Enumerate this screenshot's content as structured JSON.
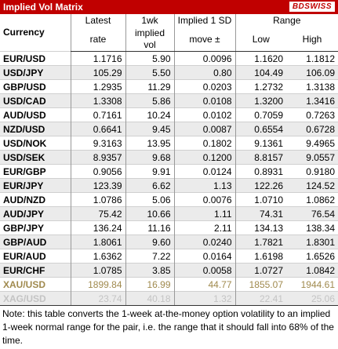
{
  "header": {
    "title": "Implied Vol Matrix",
    "logo": "BDSWISS"
  },
  "table": {
    "header": {
      "currency": "Currency",
      "latest": [
        "Latest",
        "rate"
      ],
      "vol": [
        "1wk",
        "implied vol"
      ],
      "move": [
        "Implied 1 SD",
        "move ±"
      ],
      "range": "Range",
      "low": "Low",
      "high": "High"
    },
    "rows": [
      [
        "EUR/USD",
        "1.1716",
        "5.90",
        "0.0096",
        "1.1620",
        "1.1812"
      ],
      [
        "USD/JPY",
        "105.29",
        "5.50",
        "0.80",
        "104.49",
        "106.09"
      ],
      [
        "GBP/USD",
        "1.2935",
        "11.29",
        "0.0203",
        "1.2732",
        "1.3138"
      ],
      [
        "USD/CAD",
        "1.3308",
        "5.86",
        "0.0108",
        "1.3200",
        "1.3416"
      ],
      [
        "AUD/USD",
        "0.7161",
        "10.24",
        "0.0102",
        "0.7059",
        "0.7263"
      ],
      [
        "NZD/USD",
        "0.6641",
        "9.45",
        "0.0087",
        "0.6554",
        "0.6728"
      ],
      [
        "USD/NOK",
        "9.3163",
        "13.95",
        "0.1802",
        "9.1361",
        "9.4965"
      ],
      [
        "USD/SEK",
        "8.9357",
        "9.68",
        "0.1200",
        "8.8157",
        "9.0557"
      ],
      [
        "EUR/GBP",
        "0.9056",
        "9.91",
        "0.0124",
        "0.8931",
        "0.9180"
      ],
      [
        "EUR/JPY",
        "123.39",
        "6.62",
        "1.13",
        "122.26",
        "124.52"
      ],
      [
        "AUD/NZD",
        "1.0786",
        "5.06",
        "0.0076",
        "1.0710",
        "1.0862"
      ],
      [
        "AUD/JPY",
        "75.42",
        "10.66",
        "1.11",
        "74.31",
        "76.54"
      ],
      [
        "GBP/JPY",
        "136.24",
        "11.16",
        "2.11",
        "134.13",
        "138.34"
      ],
      [
        "GBP/AUD",
        "1.8061",
        "9.60",
        "0.0240",
        "1.7821",
        "1.8301"
      ],
      [
        "EUR/AUD",
        "1.6362",
        "7.22",
        "0.0164",
        "1.6198",
        "1.6526"
      ],
      [
        "EUR/CHF",
        "1.0785",
        "3.85",
        "0.0058",
        "1.0727",
        "1.0842"
      ],
      [
        "XAU/USD",
        "1899.84",
        "16.99",
        "44.77",
        "1855.07",
        "1944.61"
      ],
      [
        "XAG/USD",
        "23.74",
        "40.18",
        "1.32",
        "22.41",
        "25.06"
      ]
    ]
  },
  "note": "Note: this table converts the 1-week at-the-money option volatility to an implied 1-week normal range for the pair, i.e. the range that it should fall into 68% of the time."
}
